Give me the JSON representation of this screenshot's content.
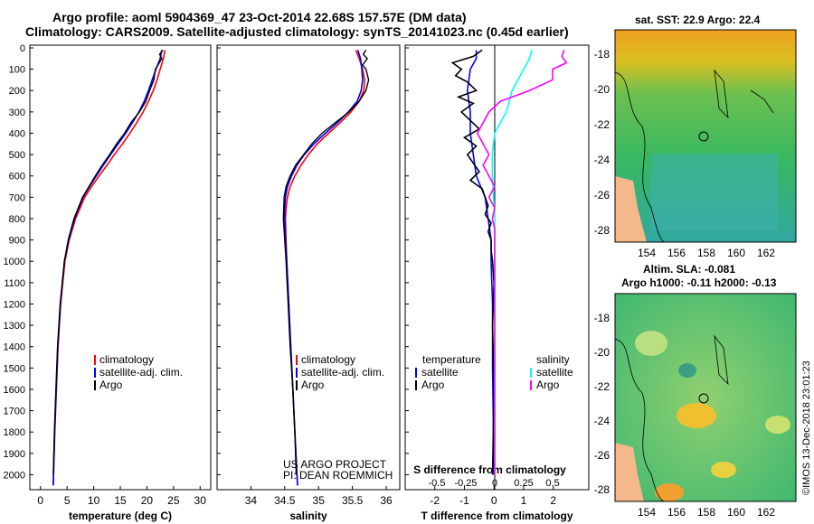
{
  "titles": {
    "line1": "Argo profile: aoml 5904369_47 23-Oct-2014 22.68S 157.57E (DM data)",
    "line2": "Climatology: CARS2009. Satellite-adjusted climatology: synTS_20141023.nc (0.45d earlier)"
  },
  "colors": {
    "climatology": "#ff0000",
    "satellite": "#0000ff",
    "argo": "#000000",
    "sat_s": "#00ffff",
    "argo_s": "#ff00ff"
  },
  "depth_axis": {
    "ticks": [
      0,
      100,
      200,
      300,
      400,
      500,
      600,
      700,
      800,
      900,
      1000,
      1100,
      1200,
      1300,
      1400,
      1500,
      1600,
      1700,
      1800,
      1900,
      2000
    ],
    "range": [
      0,
      2070
    ]
  },
  "chart_data": [
    {
      "type": "line",
      "id": "temperature",
      "xlabel": "temperature (deg C)",
      "xlim": [
        -2,
        32
      ],
      "xticks": [
        "0",
        "5",
        "10",
        "15",
        "20",
        "25",
        "30"
      ],
      "legend": [
        "climatology",
        "satellite-adj. clim.",
        "Argo"
      ],
      "series": [
        {
          "name": "climatology",
          "depth": [
            10,
            50,
            100,
            150,
            200,
            250,
            300,
            350,
            400,
            450,
            500,
            550,
            600,
            650,
            700,
            800,
            900,
            1000,
            1200,
            1400,
            1600,
            1800,
            2000,
            2050
          ],
          "values": [
            23.4,
            23.1,
            22.5,
            21.9,
            21.2,
            20.3,
            19.3,
            18.1,
            16.8,
            15.4,
            13.9,
            12.5,
            11.0,
            9.6,
            8.3,
            6.6,
            5.4,
            4.6,
            3.8,
            3.3,
            3.0,
            2.7,
            2.45,
            2.4
          ]
        },
        {
          "name": "satellite-adj. clim.",
          "depth": [
            10,
            50,
            100,
            150,
            200,
            250,
            300,
            350,
            400,
            450,
            500,
            550,
            600,
            650,
            700,
            800,
            900,
            1000,
            1200,
            1400,
            1600,
            1800,
            2000,
            2050
          ],
          "values": [
            22.8,
            22.5,
            21.7,
            21.0,
            20.3,
            19.5,
            18.5,
            17.3,
            16.0,
            14.6,
            13.2,
            11.8,
            10.5,
            9.2,
            8.0,
            6.4,
            5.3,
            4.5,
            3.75,
            3.25,
            2.95,
            2.65,
            2.45,
            2.4
          ]
        },
        {
          "name": "Argo",
          "depth": [
            10,
            30,
            50,
            100,
            150,
            200,
            250,
            300,
            350,
            400,
            450,
            500,
            550,
            600,
            650,
            700,
            800,
            900,
            1000,
            1200,
            1400,
            1600,
            1800,
            2000
          ],
          "values": [
            23.0,
            22.4,
            22.8,
            21.6,
            21.3,
            20.5,
            19.8,
            18.6,
            17.0,
            15.8,
            14.3,
            13.0,
            11.6,
            10.3,
            9.1,
            7.9,
            6.3,
            5.2,
            4.5,
            3.7,
            3.2,
            2.9,
            2.6,
            2.4
          ]
        }
      ]
    },
    {
      "type": "line",
      "id": "salinity",
      "xlabel": "salinity",
      "xlim": [
        33.5,
        36.2
      ],
      "xticks": [
        "34",
        "34.5",
        "35",
        "35.5",
        "36"
      ],
      "legend": [
        "climatology",
        "satellite-adj. clim.",
        "Argo"
      ],
      "series": [
        {
          "name": "climatology",
          "depth": [
            10,
            50,
            100,
            150,
            200,
            250,
            300,
            350,
            400,
            450,
            500,
            550,
            600,
            650,
            700,
            750,
            800,
            900,
            1000,
            1200,
            1400,
            1600,
            1800,
            2000,
            2050
          ],
          "values": [
            35.55,
            35.6,
            35.65,
            35.68,
            35.67,
            35.6,
            35.48,
            35.32,
            35.15,
            34.98,
            34.85,
            34.74,
            34.65,
            34.58,
            34.54,
            34.52,
            34.51,
            34.52,
            34.53,
            34.56,
            34.59,
            34.62,
            34.65,
            34.68,
            34.69
          ]
        },
        {
          "name": "satellite-adj. clim.",
          "depth": [
            10,
            50,
            100,
            150,
            200,
            250,
            300,
            350,
            400,
            450,
            500,
            550,
            600,
            650,
            700,
            750,
            800,
            900,
            1000,
            1200,
            1400,
            1600,
            1800,
            2000,
            2050
          ],
          "values": [
            35.58,
            35.62,
            35.64,
            35.65,
            35.63,
            35.57,
            35.44,
            35.28,
            35.1,
            34.93,
            34.79,
            34.68,
            34.6,
            34.54,
            34.51,
            34.5,
            34.5,
            34.51,
            34.53,
            34.56,
            34.59,
            34.62,
            34.65,
            34.68,
            34.69
          ]
        },
        {
          "name": "Argo",
          "depth": [
            10,
            30,
            50,
            80,
            100,
            150,
            200,
            250,
            300,
            350,
            400,
            450,
            500,
            550,
            600,
            650,
            700,
            800,
            900,
            1000,
            1200,
            1400,
            1600,
            1800,
            2000
          ],
          "values": [
            35.7,
            35.66,
            35.72,
            35.65,
            35.7,
            35.74,
            35.7,
            35.6,
            35.45,
            35.25,
            35.05,
            34.9,
            34.78,
            34.66,
            34.58,
            34.52,
            34.49,
            34.48,
            34.5,
            34.52,
            34.55,
            34.58,
            34.62,
            34.65,
            34.67
          ]
        }
      ]
    },
    {
      "type": "line",
      "id": "difference",
      "xlabel": "T difference from climatology",
      "xlabel_top": "S difference from climatology",
      "xlim": [
        -3,
        3.2
      ],
      "xticks": [
        "-2",
        "-1",
        "0",
        "1",
        "2"
      ],
      "xticks_top": [
        "-0.5",
        "-0.25",
        "0",
        "0.25",
        "0.5"
      ],
      "legend_left_title": "temperature",
      "legend_right_title": "salinity",
      "legend": [
        "satellite",
        "Argo",
        "satellite",
        "Argo"
      ],
      "series": [
        {
          "name": "T satellite",
          "depth": [
            10,
            50,
            100,
            200,
            300,
            400,
            500,
            600,
            700,
            800,
            900,
            1000,
            1200,
            1500,
            2000
          ],
          "values": [
            -0.6,
            -0.6,
            -0.8,
            -0.9,
            -0.8,
            -0.8,
            -0.7,
            -0.6,
            -0.3,
            -0.2,
            -0.1,
            -0.1,
            -0.05,
            -0.05,
            0.0
          ]
        },
        {
          "name": "T Argo",
          "depth": [
            10,
            40,
            70,
            100,
            130,
            160,
            200,
            230,
            260,
            300,
            340,
            380,
            420,
            460,
            500,
            540,
            580,
            620,
            660,
            700,
            740,
            780,
            820,
            860,
            900,
            950,
            1000,
            1100,
            1300,
            1600,
            2000
          ],
          "values": [
            -0.4,
            -0.7,
            -1.4,
            -1.1,
            -1.3,
            -0.9,
            -0.6,
            -1.2,
            -0.7,
            -1.1,
            -0.8,
            -0.5,
            -1.0,
            -0.6,
            -0.9,
            -0.7,
            -0.5,
            -0.8,
            -0.4,
            -0.3,
            -0.2,
            -0.3,
            -0.1,
            -0.2,
            -0.1,
            -0.1,
            -0.05,
            0.0,
            -0.05,
            0.0,
            -0.05
          ]
        },
        {
          "name": "S satellite",
          "depth": [
            10,
            50,
            100,
            200,
            300,
            400,
            500,
            600,
            700,
            800,
            900,
            1000,
            1500,
            2000
          ],
          "values": [
            0.32,
            0.3,
            0.25,
            0.15,
            0.1,
            0.0,
            -0.02,
            -0.02,
            -0.01,
            0.0,
            0.0,
            0.0,
            0.0,
            0.0
          ]
        },
        {
          "name": "S Argo",
          "depth": [
            10,
            40,
            70,
            100,
            150,
            200,
            250,
            300,
            350,
            400,
            450,
            500,
            550,
            600,
            650,
            700,
            750,
            800,
            850,
            900,
            1000,
            1500,
            2000
          ],
          "values": [
            0.6,
            0.58,
            0.62,
            0.5,
            0.5,
            0.3,
            0.05,
            -0.05,
            -0.1,
            -0.15,
            -0.1,
            -0.05,
            -0.1,
            -0.05,
            0.0,
            -0.05,
            0.0,
            -0.02,
            0.0,
            0.0,
            0.0,
            0.0,
            0.0
          ]
        }
      ]
    }
  ],
  "credits": {
    "project": "US ARGO PROJECT",
    "pi": "PI: DEAN ROEMMICH",
    "imos": "©IMOS 13-Dec-2018 23:01:23"
  },
  "maps": {
    "sst_title": "sat. SST: 22.9 Argo: 22.4",
    "sla_title": "Altim. SLA: -0.081",
    "sla_subtitle": "Argo h1000: -0.11 h2000: -0.13",
    "lat_ticks": [
      "-18",
      "-20",
      "-22",
      "-24",
      "-26",
      "-28"
    ],
    "lon_ticks": [
      "154",
      "156",
      "158",
      "160",
      "162"
    ]
  }
}
